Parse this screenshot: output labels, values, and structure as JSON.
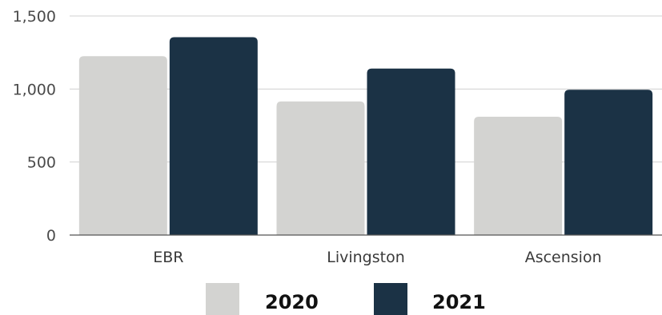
{
  "chart_data": {
    "type": "bar",
    "categories": [
      "EBR",
      "Livingston",
      "Ascension"
    ],
    "series": [
      {
        "name": "2020",
        "values": [
          1225,
          915,
          810
        ],
        "color": "#d3d3d1"
      },
      {
        "name": "2021",
        "values": [
          1355,
          1140,
          995
        ],
        "color": "#1b3245"
      }
    ],
    "ylim": [
      0,
      1500
    ],
    "yticks": [
      0,
      500,
      1000,
      1500
    ],
    "ytick_labels": [
      "0",
      "500",
      "1,000",
      "1,500"
    ],
    "grid": true,
    "legend": "bottom"
  }
}
